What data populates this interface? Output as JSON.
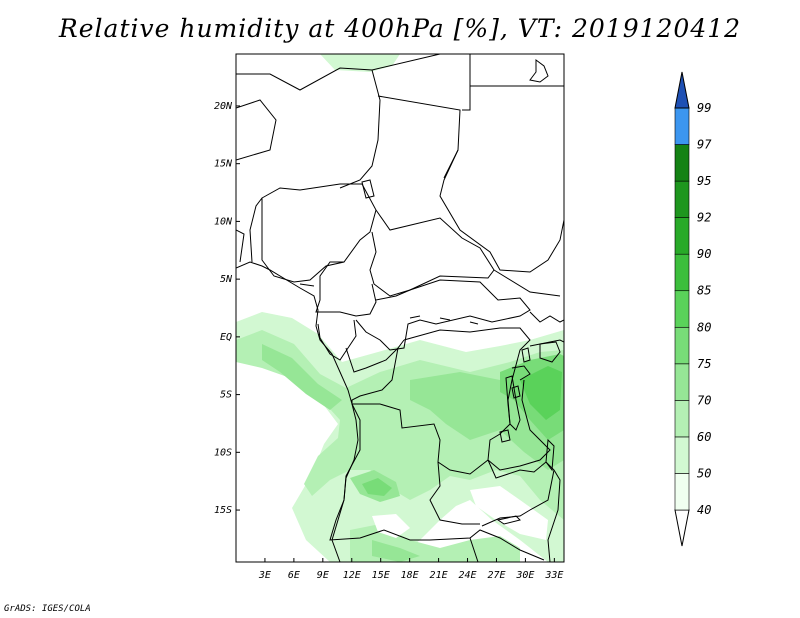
{
  "title": "Relative humidity at 400hPa [%], VT: 2019120412",
  "footer": "GrADS: IGES/COLA",
  "map": {
    "lon_range": [
      0,
      34
    ],
    "lat_range": [
      -19.5,
      24.5
    ],
    "lat_labels": [
      {
        "text": "20N",
        "value": 20
      },
      {
        "text": "15N",
        "value": 15
      },
      {
        "text": "10N",
        "value": 10
      },
      {
        "text": "5N",
        "value": 5
      },
      {
        "text": "EQ",
        "value": 0
      },
      {
        "text": "5S",
        "value": -5
      },
      {
        "text": "10S",
        "value": -10
      },
      {
        "text": "15S",
        "value": -15
      }
    ],
    "lon_labels": [
      {
        "text": "3E",
        "value": 3
      },
      {
        "text": "6E",
        "value": 6
      },
      {
        "text": "9E",
        "value": 9
      },
      {
        "text": "12E",
        "value": 12
      },
      {
        "text": "15E",
        "value": 15
      },
      {
        "text": "18E",
        "value": 18
      },
      {
        "text": "21E",
        "value": 21
      },
      {
        "text": "24E",
        "value": 24
      },
      {
        "text": "27E",
        "value": 27
      },
      {
        "text": "30E",
        "value": 30
      },
      {
        "text": "33E",
        "value": 33
      }
    ]
  },
  "colorbar": {
    "levels": [
      {
        "label": "40",
        "color": "#f0fff0"
      },
      {
        "label": "50",
        "color": "#d2f8d2"
      },
      {
        "label": "60",
        "color": "#b4f0b4"
      },
      {
        "label": "70",
        "color": "#96e696"
      },
      {
        "label": "75",
        "color": "#78dc78"
      },
      {
        "label": "80",
        "color": "#5ad25a"
      },
      {
        "label": "85",
        "color": "#3cbe3c"
      },
      {
        "label": "90",
        "color": "#28aa28"
      },
      {
        "label": "92",
        "color": "#1e961e"
      },
      {
        "label": "95",
        "color": "#148214"
      },
      {
        "label": "97",
        "color": "#3c96f0"
      },
      {
        "label": "99",
        "color": "#1e6ed2"
      }
    ],
    "top_color": "#1e50b4",
    "bottom_color": "#ffffff"
  }
}
